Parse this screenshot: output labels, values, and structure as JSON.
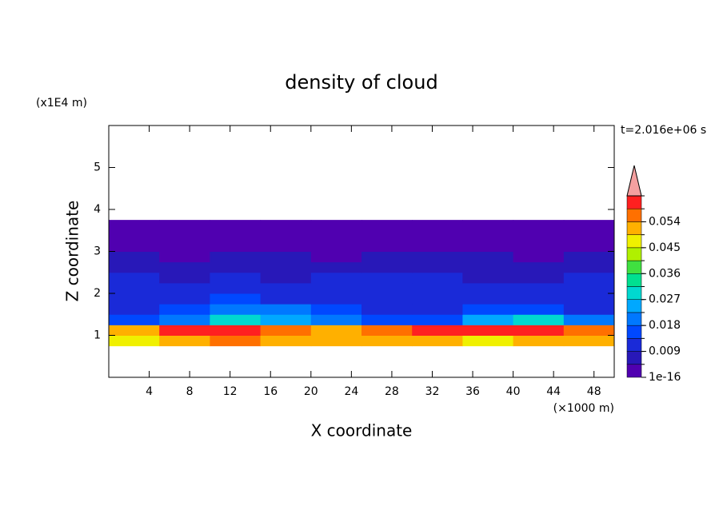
{
  "chart_data": {
    "type": "contour",
    "title": "density of cloud",
    "x_label": "X coordinate",
    "x_unit": "(×1000 m)",
    "y_label": "Z coordinate",
    "y_unit": "(x1E4 m)",
    "time_label": "t=2.016e+06 s",
    "xlim": [
      0,
      50
    ],
    "xticks": [
      4,
      8,
      12,
      16,
      20,
      24,
      28,
      32,
      36,
      40,
      44,
      48
    ],
    "ylim": [
      0,
      6
    ],
    "yticks": [
      1,
      2,
      3,
      4,
      5
    ],
    "x_edges": [
      0,
      5,
      10,
      15,
      20,
      25,
      30,
      35,
      40,
      45,
      50
    ],
    "z_edges": [
      0.75,
      1.0,
      1.25,
      1.5,
      1.75,
      2.0,
      2.25,
      2.5,
      2.75,
      3.0,
      3.25,
      3.5,
      3.75
    ],
    "z": [
      [
        0.045,
        0.05,
        0.055,
        0.05,
        0.05,
        0.05,
        0.05,
        0.045,
        0.05,
        0.05
      ],
      [
        0.05,
        0.06,
        0.06,
        0.055,
        0.05,
        0.055,
        0.06,
        0.06,
        0.06,
        0.055
      ],
      [
        0.015,
        0.02,
        0.03,
        0.025,
        0.02,
        0.015,
        0.015,
        0.025,
        0.03,
        0.02
      ],
      [
        0.012,
        0.015,
        0.02,
        0.018,
        0.015,
        0.012,
        0.012,
        0.015,
        0.015,
        0.013
      ],
      [
        0.012,
        0.012,
        0.014,
        0.013,
        0.012,
        0.01,
        0.011,
        0.01,
        0.011,
        0.012
      ],
      [
        0.01,
        0.011,
        0.011,
        0.011,
        0.01,
        0.01,
        0.011,
        0.01,
        0.009,
        0.01
      ],
      [
        0.009,
        0.008,
        0.009,
        0.008,
        0.009,
        0.009,
        0.01,
        0.008,
        0.005,
        0.009
      ],
      [
        0.007,
        0.006,
        0.007,
        0.006,
        0.007,
        0.008,
        0.007,
        0.007,
        0.006,
        0.007
      ],
      [
        0.005,
        0.004,
        0.005,
        0.005,
        0.004,
        0.005,
        0.005,
        0.005,
        0.004,
        0.005
      ],
      [
        0.003,
        0.002,
        0.003,
        0.002,
        0.002,
        0.002,
        0.003,
        0.002,
        0.002,
        0.002
      ],
      [
        0.001,
        0.001,
        0.001,
        0.001,
        0.001,
        0.001,
        0.001,
        0.001,
        0.001,
        0.001
      ],
      [
        0.001,
        0.001,
        0.001,
        0.001,
        0.001,
        0.001,
        0.001,
        0.001,
        0.001,
        0.001
      ]
    ],
    "levels": [
      1e-16,
      0.0045,
      0.009,
      0.0135,
      0.018,
      0.0225,
      0.027,
      0.0315,
      0.036,
      0.0405,
      0.045,
      0.0495,
      0.054,
      0.0585,
      0.063
    ],
    "colors": [
      "#5000b0",
      "#2818b8",
      "#1a2ad8",
      "#0048ff",
      "#0078ff",
      "#00a8ff",
      "#00d8d0",
      "#00e090",
      "#40e040",
      "#b0f000",
      "#f0f000",
      "#ffb000",
      "#ff7000",
      "#ff2020"
    ],
    "extend_color": "#f4a0a0",
    "cbar_ticks": [
      1e-16,
      0.009,
      0.018,
      0.027,
      0.036,
      0.045,
      0.054
    ]
  }
}
